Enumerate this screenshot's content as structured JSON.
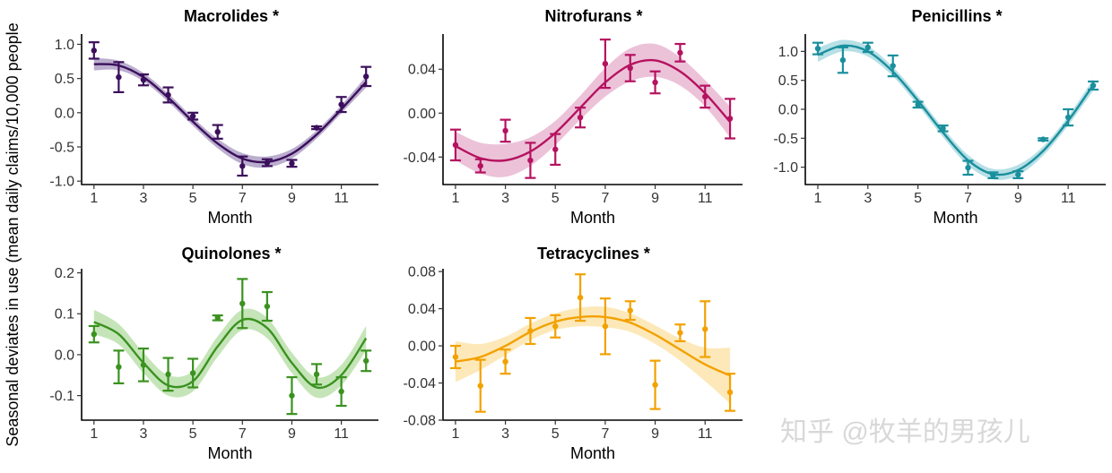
{
  "figure": {
    "y_label": "Seasonal deviates in use (mean daily claims/10,000 people",
    "watermark": "知乎 @牧羊的男孩儿"
  },
  "chart_data": [
    {
      "type": "line",
      "title": "Macrolides *",
      "xlabel": "Month",
      "color": "#3b0f5c",
      "band_color": "#8d78ad",
      "xlim": [
        0.5,
        12.5
      ],
      "xticks": [
        1,
        3,
        5,
        7,
        9,
        11
      ],
      "ylim": [
        -1.05,
        1.15
      ],
      "yticks": [
        -1.0,
        -0.5,
        0.0,
        0.5,
        1.0
      ],
      "ytick_labels": [
        "-1.0",
        "-0.5",
        "0.0",
        "0.5",
        "1.0"
      ],
      "points": {
        "x": [
          1,
          2,
          3,
          4,
          5,
          6,
          7,
          8,
          9,
          10,
          11,
          12
        ],
        "y": [
          0.91,
          0.52,
          0.48,
          0.26,
          -0.05,
          -0.28,
          -0.78,
          -0.73,
          -0.74,
          -0.22,
          0.12,
          0.53
        ],
        "err": [
          0.12,
          0.22,
          0.08,
          0.11,
          0.05,
          0.1,
          0.14,
          0.05,
          0.05,
          0.02,
          0.11,
          0.14
        ]
      },
      "fit": {
        "x": [
          1,
          2,
          3,
          4,
          5,
          6,
          7,
          8,
          9,
          10,
          11,
          12
        ],
        "y": [
          0.71,
          0.69,
          0.52,
          0.22,
          -0.13,
          -0.45,
          -0.67,
          -0.72,
          -0.6,
          -0.32,
          0.05,
          0.45
        ],
        "band": [
          0.09,
          0.07,
          0.06,
          0.06,
          0.06,
          0.07,
          0.08,
          0.08,
          0.07,
          0.06,
          0.06,
          0.08
        ]
      }
    },
    {
      "type": "line",
      "title": "Nitrofurans *",
      "xlabel": "Month",
      "color": "#b5125f",
      "band_color": "#e09abf",
      "xlim": [
        0.5,
        12.5
      ],
      "xticks": [
        1,
        3,
        5,
        7,
        9,
        11
      ],
      "ylim": [
        -0.065,
        0.072
      ],
      "yticks": [
        -0.04,
        0.0,
        0.04
      ],
      "ytick_labels": [
        "-0.04",
        "0.00",
        "0.04"
      ],
      "points": {
        "x": [
          1,
          2,
          3,
          4,
          5,
          6,
          7,
          8,
          9,
          10,
          11,
          12
        ],
        "y": [
          -0.029,
          -0.048,
          -0.016,
          -0.043,
          -0.033,
          -0.004,
          0.045,
          0.041,
          0.028,
          0.055,
          0.015,
          -0.005
        ],
        "err": [
          0.014,
          0.006,
          0.01,
          0.016,
          0.014,
          0.009,
          0.022,
          0.012,
          0.01,
          0.008,
          0.01,
          0.018
        ]
      },
      "fit": {
        "x": [
          1,
          2,
          3,
          4,
          5,
          6,
          7,
          8,
          9,
          10,
          11,
          12
        ],
        "y": [
          -0.03,
          -0.041,
          -0.043,
          -0.035,
          -0.018,
          0.005,
          0.028,
          0.044,
          0.048,
          0.038,
          0.018,
          -0.008
        ],
        "band": [
          0.013,
          0.014,
          0.015,
          0.013,
          0.011,
          0.011,
          0.013,
          0.015,
          0.015,
          0.013,
          0.012,
          0.014
        ]
      }
    },
    {
      "type": "line",
      "title": "Penicillins *",
      "xlabel": "Month",
      "color": "#1a8f9d",
      "band_color": "#87ccd6",
      "xlim": [
        0.5,
        12.5
      ],
      "xticks": [
        1,
        3,
        5,
        7,
        9,
        11
      ],
      "ylim": [
        -1.3,
        1.3
      ],
      "yticks": [
        -1.0,
        -0.5,
        0.0,
        0.5,
        1.0
      ],
      "ytick_labels": [
        "-1.0",
        "-0.5",
        "0.0",
        "0.5",
        "1.0"
      ],
      "points": {
        "x": [
          1,
          2,
          3,
          4,
          5,
          6,
          7,
          8,
          9,
          10,
          11,
          12
        ],
        "y": [
          1.05,
          0.85,
          1.07,
          0.75,
          0.08,
          -0.33,
          -1.01,
          -1.14,
          -1.13,
          -0.52,
          -0.14,
          0.41
        ],
        "err": [
          0.1,
          0.22,
          0.08,
          0.18,
          0.05,
          0.05,
          0.12,
          0.05,
          0.06,
          0.02,
          0.14,
          0.07
        ]
      },
      "fit": {
        "x": [
          1,
          2,
          3,
          4,
          5,
          6,
          7,
          8,
          9,
          10,
          11,
          12
        ],
        "y": [
          0.94,
          1.1,
          1.0,
          0.65,
          0.15,
          -0.4,
          -0.88,
          -1.12,
          -1.05,
          -0.72,
          -0.2,
          0.42
        ],
        "band": [
          0.12,
          0.1,
          0.09,
          0.08,
          0.08,
          0.08,
          0.09,
          0.09,
          0.09,
          0.08,
          0.08,
          0.1
        ]
      }
    },
    {
      "type": "line",
      "title": "Quinolones *",
      "xlabel": "Month",
      "color": "#3a921f",
      "band_color": "#9ed38a",
      "xlim": [
        0.5,
        12.5
      ],
      "xticks": [
        1,
        3,
        5,
        7,
        9,
        11
      ],
      "ylim": [
        -0.16,
        0.21
      ],
      "yticks": [
        -0.1,
        0.0,
        0.1,
        0.2
      ],
      "ytick_labels": [
        "-0.1",
        "0.0",
        "0.1",
        "0.2"
      ],
      "points": {
        "x": [
          1,
          2,
          3,
          4,
          5,
          6,
          7,
          8,
          9,
          10,
          11,
          12
        ],
        "y": [
          0.05,
          -0.03,
          -0.025,
          -0.048,
          -0.045,
          0.09,
          0.125,
          0.118,
          -0.1,
          -0.048,
          -0.09,
          -0.015
        ],
        "err": [
          0.02,
          0.04,
          0.04,
          0.04,
          0.035,
          0.006,
          0.06,
          0.035,
          0.045,
          0.025,
          0.035,
          0.025
        ]
      },
      "fit": {
        "x": [
          1,
          2,
          3,
          4,
          5,
          6,
          7,
          8,
          9,
          10,
          11,
          12
        ],
        "y": [
          0.08,
          0.05,
          -0.02,
          -0.075,
          -0.065,
          0.02,
          0.085,
          0.065,
          -0.02,
          -0.08,
          -0.05,
          0.04
        ],
        "band": [
          0.03,
          0.025,
          0.025,
          0.025,
          0.025,
          0.025,
          0.025,
          0.025,
          0.025,
          0.025,
          0.025,
          0.03
        ]
      }
    },
    {
      "type": "line",
      "title": "Tetracyclines *",
      "xlabel": "Month",
      "color": "#f2a100",
      "band_color": "#fbd88a",
      "xlim": [
        0.5,
        12.5
      ],
      "xticks": [
        1,
        3,
        5,
        7,
        9,
        11
      ],
      "ylim": [
        -0.08,
        0.083
      ],
      "yticks": [
        -0.08,
        -0.04,
        0.0,
        0.04,
        0.08
      ],
      "ytick_labels": [
        "-0.08",
        "-0.04",
        "0.00",
        "0.04",
        "0.08"
      ],
      "points": {
        "x": [
          1,
          2,
          3,
          4,
          5,
          6,
          7,
          8,
          9,
          10,
          11,
          12
        ],
        "y": [
          -0.012,
          -0.043,
          -0.017,
          0.016,
          0.021,
          0.052,
          0.021,
          0.038,
          -0.042,
          0.014,
          0.018,
          -0.05
        ],
        "err": [
          0.012,
          0.028,
          0.013,
          0.014,
          0.012,
          0.025,
          0.03,
          0.01,
          0.026,
          0.009,
          0.03,
          0.02
        ]
      },
      "fit": {
        "x": [
          1,
          2,
          3,
          4,
          5,
          6,
          7,
          8,
          9,
          10,
          11,
          12
        ],
        "y": [
          -0.017,
          -0.012,
          0.0,
          0.015,
          0.026,
          0.031,
          0.031,
          0.025,
          0.012,
          -0.004,
          -0.02,
          -0.032
        ],
        "band": [
          0.022,
          0.014,
          0.01,
          0.009,
          0.009,
          0.01,
          0.011,
          0.01,
          0.01,
          0.012,
          0.018,
          0.03
        ]
      }
    }
  ]
}
